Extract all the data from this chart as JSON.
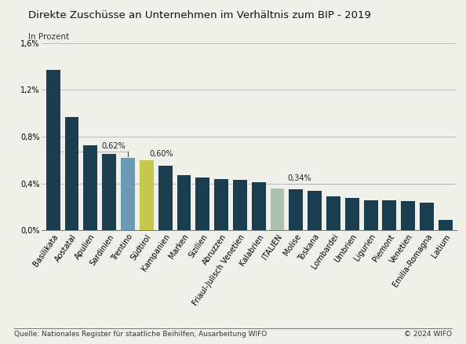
{
  "title": "Direkte Zuschüsse an Unternehmen im Verhältnis zum BIP - 2019",
  "subtitle": "In Prozent",
  "footer_left": "Quelle: Nationales Register für staatliche Beihilfen; Ausarbeitung WIFO",
  "footer_right": "© 2024 WIFO",
  "categories": [
    "Basilikata",
    "Aostatal",
    "Apulien",
    "Sardinien",
    "Trentino",
    "Südtirol",
    "Kampanien",
    "Marken",
    "Sizilien",
    "Abruzzen",
    "Friaul-Julisch Venetien",
    "Kalabrien",
    "ITALIEN",
    "Molise",
    "Toskana",
    "Lombardei",
    "Umbrien",
    "Ligurien",
    "Piemont",
    "Venetien",
    "Emilia-Romagna",
    "Latium"
  ],
  "values": [
    1.37,
    0.97,
    0.73,
    0.65,
    0.62,
    0.6,
    0.55,
    0.47,
    0.45,
    0.44,
    0.43,
    0.41,
    0.36,
    0.35,
    0.34,
    0.29,
    0.28,
    0.26,
    0.26,
    0.25,
    0.24,
    0.09
  ],
  "bar_colors": [
    "#1b3d50",
    "#1b3d50",
    "#1b3d50",
    "#1b3d50",
    "#6a9ab5",
    "#c5c84a",
    "#1b3d50",
    "#1b3d50",
    "#1b3d50",
    "#1b3d50",
    "#1b3d50",
    "#1b3d50",
    "#adc0b0",
    "#1b3d50",
    "#1b3d50",
    "#1b3d50",
    "#1b3d50",
    "#1b3d50",
    "#1b3d50",
    "#1b3d50",
    "#1b3d50",
    "#1b3d50"
  ],
  "ylim": [
    0,
    1.6
  ],
  "yticks": [
    0.0,
    0.4,
    0.8,
    1.2,
    1.6
  ],
  "ytick_labels": [
    "0,0%",
    "0,4%",
    "0,8%",
    "1,2%",
    "1,6%"
  ],
  "background_color": "#f0f0eb",
  "grid_color": "#aaaaaa",
  "title_fontsize": 9.5,
  "subtitle_fontsize": 7.5,
  "tick_fontsize": 7,
  "footer_fontsize": 6.5,
  "annot_fontsize": 7
}
